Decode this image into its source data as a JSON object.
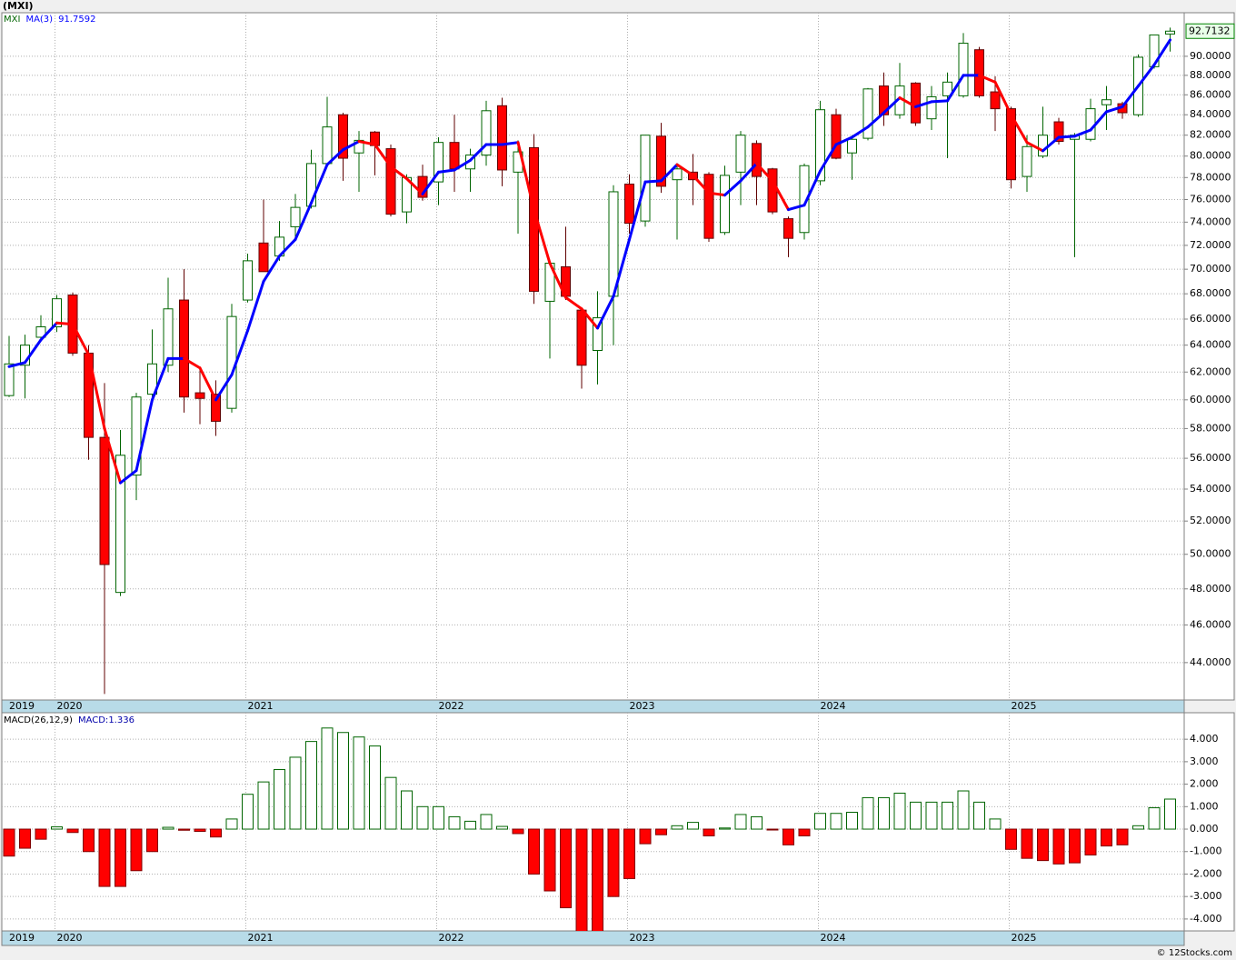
{
  "chart_data": {
    "type": "candlestick",
    "title": "(MXI)",
    "symbol": "MXI",
    "categories": [
      "2019",
      null,
      null,
      "2020",
      null,
      null,
      null,
      null,
      null,
      null,
      null,
      null,
      null,
      null,
      null,
      "2021",
      null,
      null,
      null,
      null,
      null,
      null,
      null,
      null,
      null,
      null,
      null,
      "2022",
      null,
      null,
      null,
      null,
      null,
      null,
      null,
      null,
      null,
      null,
      null,
      "2023",
      null,
      null,
      null,
      null,
      null,
      null,
      null,
      null,
      null,
      null,
      null,
      "2024",
      null,
      null,
      null,
      null,
      null,
      null,
      null,
      null,
      null,
      null,
      null,
      "2025",
      null,
      null,
      null,
      null,
      null,
      null,
      null,
      null,
      null,
      null
    ],
    "open": [
      60.3,
      62.5,
      64.6,
      65.4,
      67.9,
      63.4,
      57.4,
      47.8,
      54.9,
      60.4,
      62.5,
      67.5,
      60.5,
      60.4,
      59.4,
      67.5,
      72.2,
      71.1,
      73.6,
      75.4,
      79.3,
      84.0,
      80.3,
      82.3,
      80.7,
      74.9,
      78.1,
      77.6,
      81.3,
      78.8,
      80.1,
      84.9,
      78.5,
      80.8,
      67.4,
      70.2,
      66.7,
      63.6,
      67.8,
      77.4,
      74.1,
      81.9,
      77.8,
      78.5,
      78.3,
      73.1,
      78.5,
      81.2,
      78.8,
      74.3,
      73.1,
      77.7,
      84.0,
      80.3,
      81.7,
      86.9,
      84.0,
      87.2,
      83.6,
      85.9,
      85.9,
      90.7,
      86.3,
      84.6,
      78.1,
      80.0,
      83.3,
      81.6,
      81.6,
      85.0,
      85.1,
      84.0,
      88.9,
      92.4
    ],
    "high": [
      64.7,
      64.8,
      66.3,
      67.9,
      68.1,
      64.0,
      61.2,
      57.9,
      60.5,
      65.2,
      69.3,
      70.0,
      62.4,
      61.4,
      67.2,
      71.3,
      76.0,
      74.1,
      76.5,
      80.6,
      85.8,
      84.2,
      82.4,
      82.4,
      81.1,
      78.3,
      79.2,
      81.8,
      84.0,
      80.7,
      85.4,
      85.7,
      81.5,
      82.1,
      70.7,
      73.6,
      66.9,
      68.2,
      77.3,
      78.3,
      82.0,
      83.2,
      79.3,
      80.2,
      78.5,
      79.1,
      82.4,
      81.5,
      78.9,
      74.5,
      79.3,
      85.4,
      84.6,
      82.0,
      86.7,
      88.3,
      89.3,
      87.3,
      86.9,
      88.3,
      92.5,
      91.0,
      87.9,
      84.8,
      82.0,
      84.8,
      83.7,
      82.2,
      85.6,
      86.9,
      85.3,
      90.2,
      92.3,
      93.1
    ],
    "low": [
      60.2,
      60.1,
      64.4,
      65.0,
      63.2,
      55.9,
      42.4,
      47.6,
      53.3,
      60.0,
      62.0,
      59.1,
      58.3,
      57.5,
      59.1,
      67.3,
      69.8,
      70.7,
      72.7,
      75.2,
      79.1,
      77.7,
      76.7,
      78.2,
      74.5,
      73.9,
      75.9,
      75.5,
      76.7,
      76.7,
      79.1,
      77.2,
      73.0,
      67.2,
      63.0,
      67.5,
      60.8,
      61.1,
      64.0,
      73.0,
      73.6,
      76.6,
      72.5,
      75.5,
      72.3,
      72.9,
      75.5,
      75.5,
      74.7,
      71.0,
      72.5,
      77.3,
      79.7,
      77.8,
      81.5,
      82.9,
      83.6,
      82.9,
      82.5,
      79.8,
      85.7,
      85.7,
      82.4,
      77.0,
      76.7,
      79.8,
      81.1,
      71.0,
      81.4,
      82.5,
      83.6,
      83.8,
      88.7,
      90.5
    ],
    "close": [
      62.6,
      64.0,
      65.4,
      67.6,
      63.4,
      57.4,
      49.4,
      56.2,
      60.2,
      62.6,
      66.8,
      60.2,
      60.1,
      58.5,
      66.2,
      70.7,
      69.8,
      72.7,
      75.3,
      79.3,
      82.8,
      79.8,
      81.5,
      81.0,
      74.7,
      78.0,
      76.2,
      81.3,
      78.8,
      80.1,
      84.4,
      78.7,
      80.4,
      68.2,
      70.5,
      67.8,
      62.5,
      66.1,
      76.7,
      73.9,
      82.0,
      77.2,
      78.8,
      77.8,
      72.6,
      78.2,
      82.0,
      78.1,
      74.9,
      72.6,
      79.1,
      84.5,
      79.8,
      81.6,
      86.6,
      84.0,
      86.9,
      83.2,
      85.8,
      87.3,
      91.4,
      85.9,
      84.6,
      77.8,
      80.9,
      82.0,
      81.4,
      82.0,
      84.6,
      85.5,
      84.2,
      89.9,
      92.3,
      92.7132
    ],
    "up_color": "#006400",
    "down_color": "#ff0000",
    "log_scale": true,
    "grid": true,
    "ylim": [
      42.1,
      94.75
    ],
    "yticks": [
      {
        "value": 44,
        "label": "44.0000"
      },
      {
        "value": 46,
        "label": "46.0000"
      },
      {
        "value": 48,
        "label": "48.0000"
      },
      {
        "value": 50,
        "label": "50.0000"
      },
      {
        "value": 52,
        "label": "52.0000"
      },
      {
        "value": 54,
        "label": "54.0000"
      },
      {
        "value": 56,
        "label": "56.0000"
      },
      {
        "value": 58,
        "label": "58.0000"
      },
      {
        "value": 60,
        "label": "60.0000"
      },
      {
        "value": 62,
        "label": "62.0000"
      },
      {
        "value": 64,
        "label": "64.0000"
      },
      {
        "value": 66,
        "label": "66.0000"
      },
      {
        "value": 68,
        "label": "68.0000"
      },
      {
        "value": 70,
        "label": "70.0000"
      },
      {
        "value": 72,
        "label": "72.0000"
      },
      {
        "value": 74,
        "label": "74.0000"
      },
      {
        "value": 76,
        "label": "76.0000"
      },
      {
        "value": 78,
        "label": "78.0000"
      },
      {
        "value": 80,
        "label": "80.0000"
      },
      {
        "value": 82,
        "label": "82.0000"
      },
      {
        "value": 84,
        "label": "84.0000"
      },
      {
        "value": 86,
        "label": "86.0000"
      },
      {
        "value": 88,
        "label": "88.0000"
      },
      {
        "value": 90,
        "label": "90.0000"
      }
    ],
    "ma": {
      "name": "MA(3)",
      "up_color": "#0000ff",
      "down_color": "#ff0000",
      "values": [
        62.4,
        62.7,
        64.4,
        65.7,
        65.6,
        63.3,
        58.0,
        54.4,
        55.2,
        60.0,
        63.0,
        63.0,
        62.3,
        60.0,
        61.8,
        65.1,
        69.0,
        71.1,
        72.5,
        75.7,
        79.2,
        80.6,
        81.4,
        81.1,
        79.0,
        77.9,
        76.5,
        78.5,
        78.7,
        79.6,
        81.1,
        81.1,
        81.3,
        75.1,
        70.5,
        67.7,
        66.8,
        65.3,
        67.8,
        72.5,
        77.6,
        77.7,
        79.2,
        78.2,
        76.6,
        76.4,
        77.7,
        79.3,
        77.7,
        75.1,
        75.5,
        78.6,
        81.1,
        81.8,
        82.8,
        84.2,
        85.7,
        84.8,
        85.3,
        85.4,
        88.0,
        88.0,
        87.3,
        84.0,
        81.3,
        80.5,
        81.8,
        81.9,
        82.5,
        84.3,
        84.8,
        86.9,
        89.1,
        91.7592
      ]
    },
    "macd": {
      "name": "MACD(26,12,9)",
      "value_name": "MACD:",
      "up_color": "#006400",
      "down_color": "#ff0000",
      "values": [
        -1.2,
        -0.85,
        -0.45,
        0.1,
        -0.15,
        -1.0,
        -2.55,
        -2.55,
        -1.85,
        -1.0,
        0.08,
        -0.05,
        -0.1,
        -0.35,
        0.45,
        1.55,
        2.1,
        2.65,
        3.2,
        3.9,
        4.5,
        4.3,
        4.1,
        3.7,
        2.3,
        1.7,
        1.0,
        1.0,
        0.55,
        0.35,
        0.65,
        0.12,
        -0.2,
        -2.0,
        -2.75,
        -3.5,
        -4.6,
        -4.6,
        -3.0,
        -2.2,
        -0.65,
        -0.25,
        0.15,
        0.3,
        -0.3,
        0.05,
        0.65,
        0.55,
        -0.02,
        -0.7,
        -0.3,
        0.7,
        0.7,
        0.75,
        1.4,
        1.4,
        1.6,
        1.2,
        1.2,
        1.2,
        1.7,
        1.2,
        0.45,
        -0.9,
        -1.3,
        -1.4,
        -1.55,
        -1.5,
        -1.15,
        -0.75,
        -0.7,
        0.15,
        0.95,
        1.336
      ],
      "ylim": [
        -4.53,
        5.18
      ],
      "yticks": [
        {
          "value": -4,
          "label": "-4.000"
        },
        {
          "value": -3,
          "label": "-3.000"
        },
        {
          "value": -2,
          "label": "-2.000"
        },
        {
          "value": -1,
          "label": "-1.000"
        },
        {
          "value": 0,
          "label": "0.000"
        },
        {
          "value": 1,
          "label": "1.000"
        },
        {
          "value": 2,
          "label": "2.000"
        },
        {
          "value": 3,
          "label": "3.000"
        },
        {
          "value": 4,
          "label": "4.000"
        }
      ]
    },
    "footer": "© 12Stocks.com"
  }
}
